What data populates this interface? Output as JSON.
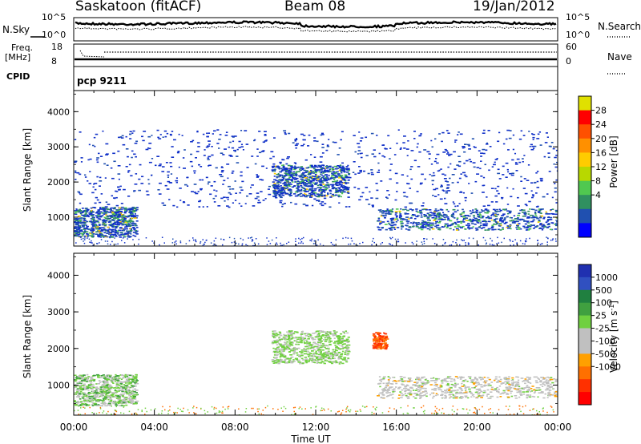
{
  "header": {
    "station": "Saskatoon (fitACF)",
    "beam": "Beam 08",
    "date": "19/Jan/2012"
  },
  "top_panel": {
    "left_label": "N.Sky",
    "right_label": "N.Search",
    "left_ticks": [
      "10^5",
      "10^0"
    ],
    "right_ticks": [
      "10^5",
      "10^0"
    ]
  },
  "freq_panel": {
    "left_label_1": "Freq.",
    "left_label_2": "[MHz]",
    "left_ticks": [
      "18",
      "8"
    ],
    "right_label": "Nave",
    "right_ticks": [
      "60",
      "0"
    ]
  },
  "cpid": {
    "label": "CPID",
    "value": "pcp 9211"
  },
  "chart_data": [
    {
      "type": "heatmap",
      "panel": "power",
      "ylabel": "Slant Range [km]",
      "yticks": [
        1000,
        2000,
        3000,
        4000
      ],
      "ylim": [
        180,
        4600
      ],
      "colorbar": {
        "label": "Power [dB]",
        "ticks": [
          "28",
          "24",
          "20",
          "16",
          "12",
          "8",
          "4"
        ],
        "colors": [
          "#e0e000",
          "#ff0000",
          "#ff5000",
          "#ff9000",
          "#ffcc00",
          "#b8d800",
          "#50c850",
          "#309060",
          "#2050b0",
          "#0000ff"
        ]
      },
      "scatter_regions": [
        {
          "t0": 0.0,
          "t1": 3.1,
          "r0": 450,
          "r1": 1300
        },
        {
          "t0": 15.0,
          "t1": 24.0,
          "r0": 650,
          "r1": 1250
        },
        {
          "t0": 9.8,
          "t1": 13.6,
          "r0": 1600,
          "r1": 2500
        },
        {
          "t0": 0.0,
          "t1": 24.0,
          "r0": 1300,
          "r1": 3500
        }
      ]
    },
    {
      "type": "heatmap",
      "panel": "velocity",
      "ylabel": "Slant Range [km]",
      "yticks": [
        1000,
        2000,
        3000,
        4000
      ],
      "ylim": [
        180,
        4600
      ],
      "colorbar": {
        "label": "Velocity [m s^-1]",
        "ticks": [
          "1000",
          "500",
          "100",
          "25",
          "-25",
          "-100",
          "-500",
          "-1000"
        ],
        "colors": [
          "#2030b0",
          "#3050c0",
          "#208040",
          "#40a040",
          "#70d040",
          "#c0c0c0",
          "#c0c0c0",
          "#ffa000",
          "#ff7000",
          "#ff3000",
          "#ff0000"
        ]
      },
      "scatter_regions": [
        {
          "t0": 0.0,
          "t1": 3.1,
          "r0": 450,
          "r1": 1300
        },
        {
          "t0": 15.0,
          "t1": 24.0,
          "r0": 650,
          "r1": 1250
        },
        {
          "t0": 9.8,
          "t1": 13.6,
          "r0": 1600,
          "r1": 2500
        },
        {
          "t0": 14.8,
          "t1": 15.5,
          "r0": 2000,
          "r1": 2450
        }
      ]
    }
  ],
  "xaxis": {
    "label": "Time UT",
    "ticks": [
      "00:00",
      "04:00",
      "08:00",
      "12:00",
      "16:00",
      "20:00",
      "00:00"
    ],
    "range_hours": [
      0,
      24
    ]
  }
}
